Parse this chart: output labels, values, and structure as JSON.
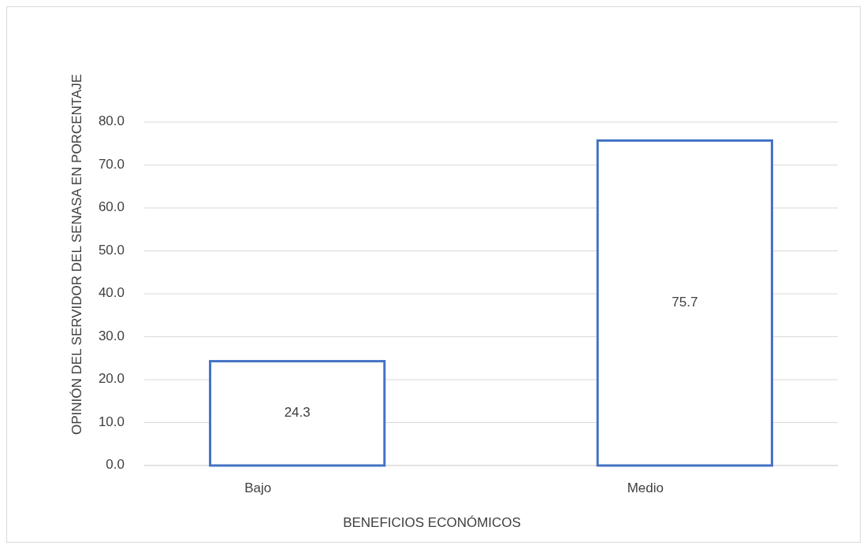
{
  "chart_data": {
    "type": "bar",
    "xlabel": "BENEFICIOS ECONÓMICOS",
    "ylabel": "OPINIÓN DEL SERVIDOR DEL SENASA EN PORCENTAJE",
    "categories": [
      "Bajo",
      "Medio"
    ],
    "values": [
      24.3,
      75.7
    ],
    "color": "#4472c4",
    "ylim": [
      0,
      80
    ],
    "yticks": [
      {
        "value": 0,
        "label": "0.0"
      },
      {
        "value": 10,
        "label": "10.0"
      },
      {
        "value": 20,
        "label": "20.0"
      },
      {
        "value": 30,
        "label": "30.0"
      },
      {
        "value": 40,
        "label": "40.0"
      },
      {
        "value": 50,
        "label": "50.0"
      },
      {
        "value": 60,
        "label": "60.0"
      },
      {
        "value": 70,
        "label": "70.0"
      },
      {
        "value": 80,
        "label": "80.0"
      }
    ],
    "grid": true,
    "data_labels": true
  }
}
